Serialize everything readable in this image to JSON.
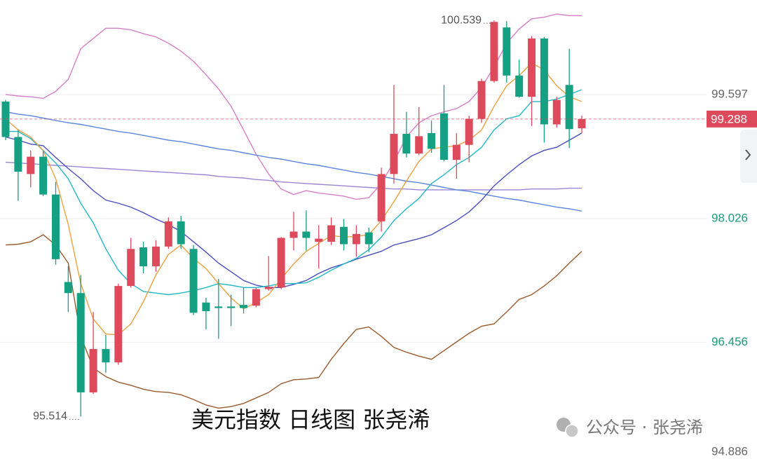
{
  "chart_data": {
    "type": "candlestick",
    "caption": "美元指数 日线图 张尧浠",
    "watermark": "公众号 · 张尧浠",
    "up_color": "#dd4a5c",
    "down_color": "#15a083",
    "open": [
      99.51,
      99.06,
      98.59,
      98.81,
      98.33,
      97.22,
      97.08,
      95.82,
      96.37,
      96.2,
      97.17,
      97.66,
      97.42,
      97.67,
      97.99,
      97.64,
      96.96,
      96.91,
      96.91,
      96.93,
      96.92,
      97.13,
      97.15,
      97.78,
      97.86,
      97.73,
      97.73,
      97.92,
      97.7,
      97.85,
      97.99,
      98.59,
      99.1,
      98.85,
      99.11,
      99.36,
      98.77,
      98.96,
      99.29,
      99.77,
      100.45,
      99.84,
      99.57,
      100.31,
      99.22,
      99.72,
      99.17
    ],
    "high": [
      99.53,
      99.15,
      98.89,
      98.89,
      98.49,
      97.42,
      97.31,
      96.84,
      96.55,
      97.2,
      97.78,
      97.73,
      97.75,
      98.04,
      98.06,
      97.69,
      97.02,
      97.26,
      97.06,
      97.15,
      97.15,
      97.55,
      97.79,
      98.11,
      98.13,
      97.94,
      98.04,
      98.02,
      97.94,
      97.91,
      98.67,
      99.72,
      99.38,
      99.44,
      99.27,
      99.72,
      99.11,
      99.33,
      99.8,
      100.539,
      100.53,
      100.04,
      100.34,
      100.33,
      99.57,
      100.18,
      99.33
    ],
    "low": [
      99.02,
      98.25,
      98.42,
      98.31,
      97.44,
      96.84,
      95.514,
      95.8,
      96.07,
      96.17,
      97.15,
      97.33,
      97.35,
      97.64,
      97.64,
      96.8,
      96.62,
      96.5,
      96.66,
      96.82,
      96.9,
      97.11,
      97.13,
      97.62,
      97.62,
      97.39,
      97.69,
      97.62,
      97.54,
      97.6,
      97.86,
      98.47,
      98.8,
      98.83,
      98.86,
      98.75,
      98.53,
      98.74,
      99.24,
      99.75,
      99.75,
      99.56,
      99.2,
      98.99,
      99.18,
      98.92,
      99.11
    ],
    "close": [
      99.06,
      98.62,
      98.81,
      98.33,
      97.51,
      97.08,
      95.82,
      96.37,
      96.2,
      97.17,
      97.64,
      97.42,
      97.67,
      97.99,
      97.7,
      96.83,
      96.85,
      96.89,
      96.89,
      96.89,
      97.13,
      97.16,
      97.78,
      97.86,
      97.78,
      97.77,
      97.94,
      97.7,
      97.83,
      97.7,
      98.59,
      99.1,
      98.85,
      99.07,
      98.91,
      98.77,
      98.96,
      99.29,
      99.77,
      100.52,
      99.84,
      99.57,
      100.31,
      99.22,
      99.53,
      99.16,
      99.288
    ],
    "lines": [
      {
        "color": "#d77fc8",
        "values": [
          99.6,
          99.58,
          99.57,
          99.55,
          99.64,
          99.79,
          100.18,
          100.31,
          100.44,
          100.44,
          100.42,
          100.37,
          100.33,
          100.25,
          100.15,
          100.02,
          99.85,
          99.67,
          99.45,
          99.15,
          98.84,
          98.59,
          98.4,
          98.33,
          98.38,
          98.35,
          98.33,
          98.31,
          98.27,
          98.29,
          98.47,
          98.75,
          99.06,
          99.24,
          99.33,
          99.38,
          99.42,
          99.51,
          99.69,
          99.95,
          100.25,
          100.43,
          100.56,
          100.58,
          100.62,
          100.6,
          100.6
        ]
      },
      {
        "color": "#9a5a2c",
        "values": [
          97.69,
          97.7,
          97.73,
          97.82,
          97.69,
          97.46,
          96.53,
          96.13,
          96.02,
          95.95,
          95.91,
          95.86,
          95.83,
          95.82,
          95.79,
          95.73,
          95.66,
          95.62,
          95.64,
          95.68,
          95.75,
          95.82,
          95.93,
          95.98,
          95.99,
          96.01,
          96.24,
          96.44,
          96.62,
          96.65,
          96.53,
          96.39,
          96.33,
          96.28,
          96.24,
          96.35,
          96.46,
          96.57,
          96.66,
          96.69,
          96.84,
          97.0,
          97.06,
          97.17,
          97.3,
          97.46,
          97.61
        ]
      },
      {
        "color": "#9a86d8",
        "values": [
          98.74,
          98.73,
          98.72,
          98.71,
          98.7,
          98.69,
          98.68,
          98.67,
          98.66,
          98.65,
          98.64,
          98.63,
          98.62,
          98.61,
          98.6,
          98.59,
          98.58,
          98.56,
          98.55,
          98.54,
          98.52,
          98.51,
          98.49,
          98.48,
          98.47,
          98.46,
          98.45,
          98.44,
          98.43,
          98.42,
          98.41,
          98.4,
          98.4,
          98.39,
          98.39,
          98.39,
          98.39,
          98.39,
          98.39,
          98.39,
          98.39,
          98.39,
          98.4,
          98.4,
          98.4,
          98.41,
          98.41
        ]
      },
      {
        "color": "#5b86e0",
        "values": [
          99.38,
          99.35,
          99.33,
          99.3,
          99.27,
          99.24,
          99.22,
          99.19,
          99.16,
          99.13,
          99.11,
          99.08,
          99.05,
          99.02,
          99.0,
          98.97,
          98.94,
          98.91,
          98.89,
          98.86,
          98.83,
          98.8,
          98.78,
          98.75,
          98.72,
          98.7,
          98.67,
          98.64,
          98.61,
          98.59,
          98.56,
          98.53,
          98.5,
          98.48,
          98.45,
          98.42,
          98.39,
          98.37,
          98.34,
          98.31,
          98.28,
          98.26,
          98.23,
          98.2,
          98.17,
          98.15,
          98.12
        ]
      },
      {
        "color": "#4a4ec0",
        "values": [
          99.06,
          99.02,
          98.97,
          98.95,
          98.8,
          98.66,
          98.53,
          98.38,
          98.26,
          98.22,
          98.17,
          98.1,
          98.02,
          97.95,
          97.86,
          97.73,
          97.6,
          97.46,
          97.35,
          97.24,
          97.18,
          97.15,
          97.15,
          97.19,
          97.24,
          97.33,
          97.4,
          97.45,
          97.51,
          97.56,
          97.61,
          97.69,
          97.73,
          97.77,
          97.82,
          97.91,
          98.0,
          98.11,
          98.26,
          98.44,
          98.58,
          98.71,
          98.82,
          98.89,
          98.93,
          99.02,
          99.11
        ]
      },
      {
        "color": "#22b8c8",
        "values": [
          99.13,
          99.13,
          99.04,
          98.89,
          98.73,
          98.53,
          98.22,
          97.97,
          97.64,
          97.37,
          97.2,
          97.1,
          97.08,
          97.06,
          97.08,
          97.11,
          97.15,
          97.2,
          97.18,
          97.15,
          97.15,
          97.17,
          97.2,
          97.2,
          97.21,
          97.28,
          97.37,
          97.45,
          97.52,
          97.63,
          97.79,
          98.0,
          98.15,
          98.28,
          98.47,
          98.58,
          98.71,
          98.8,
          98.93,
          99.15,
          99.29,
          99.33,
          99.51,
          99.51,
          99.54,
          99.6,
          99.66
        ]
      },
      {
        "color": "#f0a040",
        "values": [
          99.29,
          99.15,
          99.06,
          98.89,
          98.53,
          97.95,
          97.2,
          96.75,
          96.56,
          96.55,
          96.69,
          96.97,
          97.31,
          97.57,
          97.69,
          97.52,
          97.39,
          97.2,
          97.02,
          96.88,
          96.96,
          97.06,
          97.26,
          97.45,
          97.61,
          97.71,
          97.81,
          97.79,
          97.8,
          97.82,
          98.0,
          98.24,
          98.5,
          98.75,
          98.91,
          98.93,
          98.95,
          99.02,
          99.15,
          99.45,
          99.71,
          99.84,
          100.0,
          99.91,
          99.71,
          99.57,
          99.51
        ]
      }
    ],
    "max_label": 100.539,
    "min_label": 95.514,
    "last_price": 99.288,
    "last_price_color": "#dd4a5c",
    "ylim": [
      94.886,
      100.798
    ],
    "yticks": [
      99.597,
      98.026,
      96.456,
      94.886
    ],
    "ytick_colors": [
      "#666666",
      "#1a9a7a",
      "#1a9a7a",
      "#666666"
    ],
    "grid": true
  }
}
